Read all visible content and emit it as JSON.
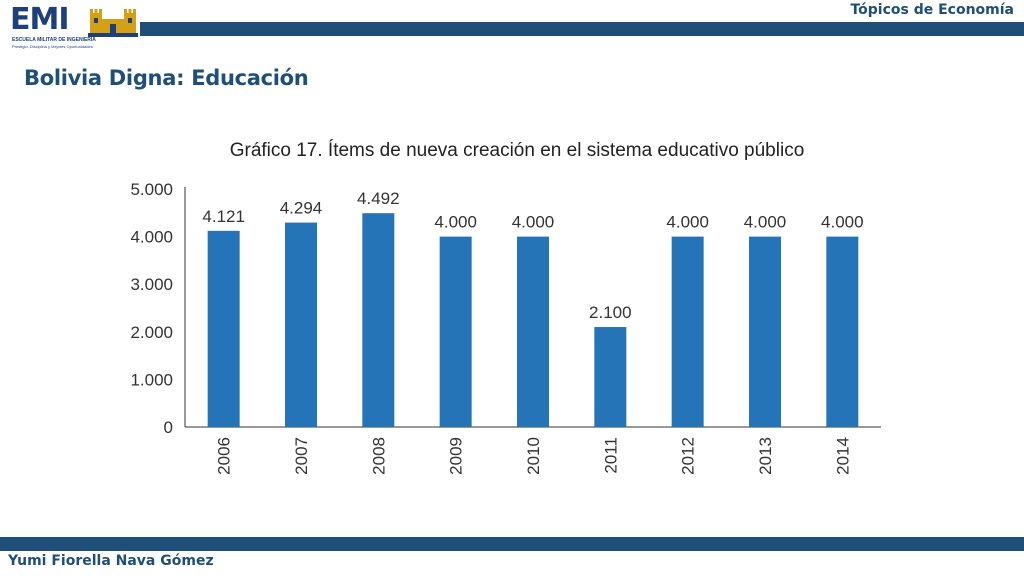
{
  "header": {
    "topic": "Tópicos de Economía",
    "logo_text": "EMI",
    "logo_subtitle": "ESCUELA MILITAR DE INGENIERIA",
    "logo_motto": "Prestigio, Disciplina y Mejores Oportunidades"
  },
  "page_title": "Bolivia Digna: Educación",
  "footer": {
    "author": "Yumi Fiorella Nava Gómez"
  },
  "colors": {
    "bar": "#2574b7",
    "band": "#1f4e79"
  },
  "chart_data": {
    "type": "bar",
    "title": "Gráfico 17. Ítems de nueva creación en el sistema educativo público",
    "categories": [
      "2006",
      "2007",
      "2008",
      "2009",
      "2010",
      "2011",
      "2012",
      "2013",
      "2014"
    ],
    "values": [
      4121,
      4294,
      4492,
      4000,
      4000,
      2100,
      4000,
      4000,
      4000
    ],
    "data_labels": [
      "4.121",
      "4.294",
      "4.492",
      "4.000",
      "4.000",
      "2.100",
      "4.000",
      "4.000",
      "4.000"
    ],
    "yticks": [
      0,
      1000,
      2000,
      3000,
      4000,
      5000
    ],
    "ytick_labels": [
      "0",
      "1.000",
      "2.000",
      "3.000",
      "4.000",
      "5.000"
    ],
    "ylim": [
      0,
      5000
    ],
    "grid": false
  }
}
